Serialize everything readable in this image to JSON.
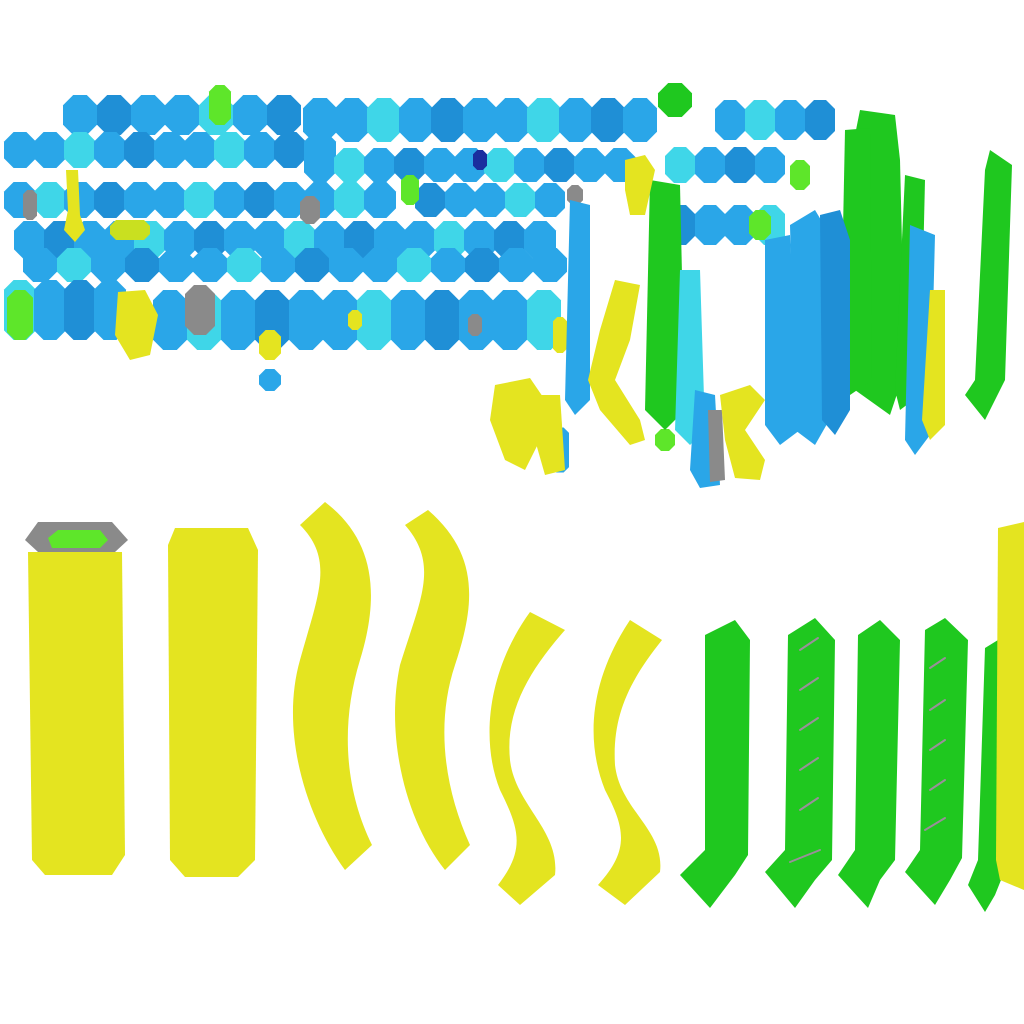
{
  "palette": {
    "background": "#ffffff",
    "blue": "#2aa6e8",
    "blue_dark": "#1f8fd6",
    "cyan": "#3fd6e8",
    "green": "#1fc81f",
    "green_light": "#5ee62a",
    "yellow": "#e4e420",
    "yellow_green": "#c9e020",
    "gray": "#8a8a8a",
    "navy": "#1a2f9e"
  },
  "regions": {
    "top_cluster": "blue-fragments",
    "bottom_row": "strips"
  }
}
